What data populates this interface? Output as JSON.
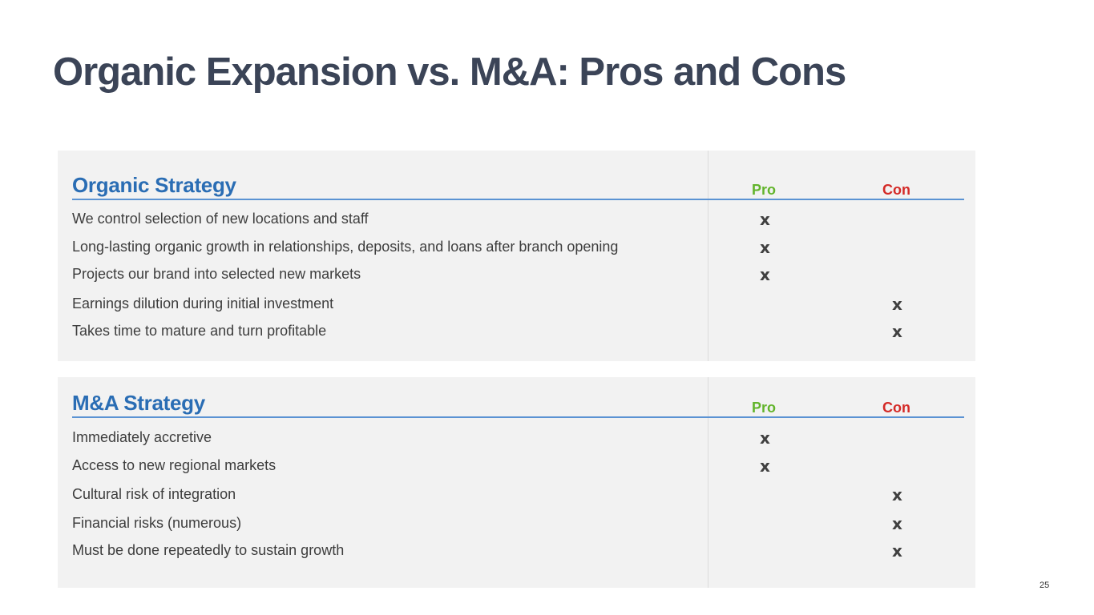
{
  "slide": {
    "title": "Organic Expansion vs. M&A: Pros and Cons",
    "page_number": "25"
  },
  "columns": {
    "pro_label": "Pro",
    "con_label": "Con",
    "mark": "x"
  },
  "organic": {
    "title": "Organic Strategy",
    "rows": [
      {
        "text": "We control selection of new locations and staff",
        "assessment": "pro"
      },
      {
        "text": "Long-lasting organic growth in relationships, deposits, and loans after branch opening",
        "assessment": "pro"
      },
      {
        "text": "Projects our brand into selected new markets",
        "assessment": "pro"
      },
      {
        "text": "Earnings dilution during initial investment",
        "assessment": "con"
      },
      {
        "text": "Takes time to mature and turn profitable",
        "assessment": "con"
      }
    ]
  },
  "ma": {
    "title": "M&A Strategy",
    "rows": [
      {
        "text": "Immediately accretive",
        "assessment": "pro"
      },
      {
        "text": "Access to new regional markets",
        "assessment": "pro"
      },
      {
        "text": "Cultural risk of integration",
        "assessment": "con"
      },
      {
        "text": "Financial risks (numerous)",
        "assessment": "con"
      },
      {
        "text": "Must be done repeatedly to sustain growth",
        "assessment": "con"
      }
    ]
  },
  "colors": {
    "title": "#3b4457",
    "section_title": "#2a6db4",
    "pro": "#62b42b",
    "con": "#d42a27",
    "panel_bg": "#f2f2f2",
    "rule": "#5b93d3"
  }
}
